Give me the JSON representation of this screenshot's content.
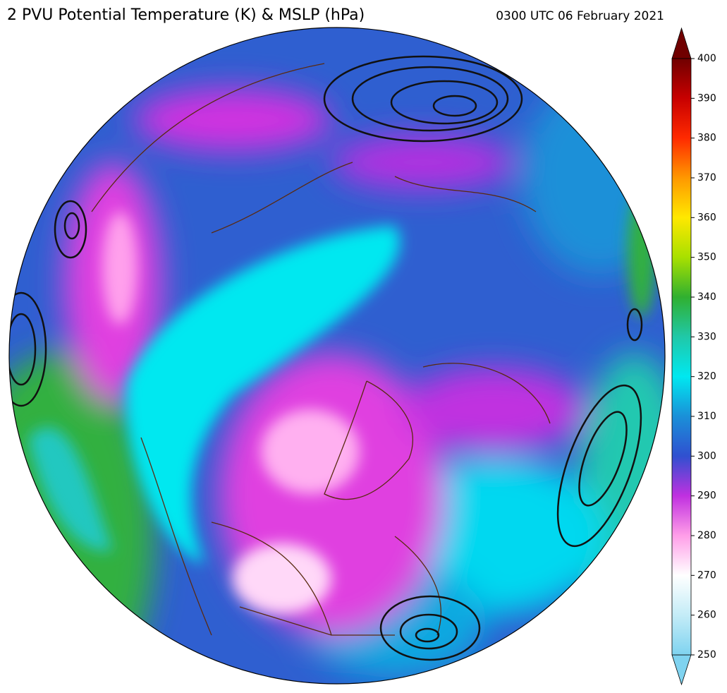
{
  "title": "2 PVU Potential Temperature (K) & MSLP (hPa)",
  "timestamp": "0300 UTC 06 February 2021",
  "colorbar": {
    "range": [
      250,
      400
    ],
    "ticks": [
      250,
      260,
      270,
      280,
      290,
      300,
      310,
      320,
      330,
      340,
      350,
      360,
      370,
      380,
      390,
      400
    ],
    "colors": [
      "#7fd3f0",
      "#c4ecf7",
      "#ffffff",
      "#ff9ee8",
      "#c030e0",
      "#3050d0",
      "#1a90d8",
      "#00e8f0",
      "#20c8a8",
      "#30b030",
      "#a8e000",
      "#ffe800",
      "#ff9800",
      "#ff2a00",
      "#c80000",
      "#700000"
    ]
  }
}
